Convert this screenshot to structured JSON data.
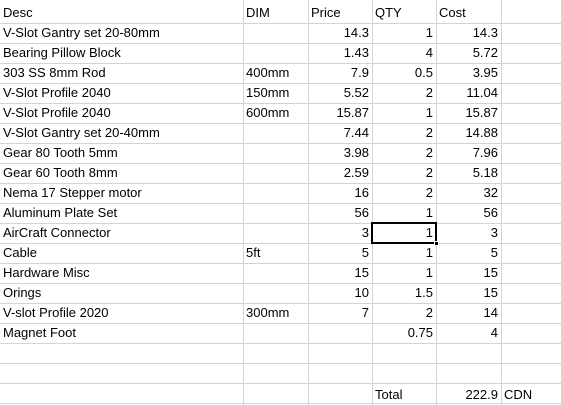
{
  "headers": [
    "Desc",
    "DIM",
    "Price",
    "QTY",
    "Cost"
  ],
  "rows": [
    {
      "desc": "V-Slot Gantry set 20-80mm",
      "dim": "",
      "price": "14.3",
      "qty": "1",
      "cost": "14.3"
    },
    {
      "desc": "Bearing Pillow Block",
      "dim": "",
      "price": "1.43",
      "qty": "4",
      "cost": "5.72"
    },
    {
      "desc": "303 SS 8mm Rod",
      "dim": "400mm",
      "price": "7.9",
      "qty": "0.5",
      "cost": "3.95"
    },
    {
      "desc": "V-Slot Profile 2040",
      "dim": "150mm",
      "price": "5.52",
      "qty": "2",
      "cost": "11.04"
    },
    {
      "desc": "V-Slot Profile 2040",
      "dim": "600mm",
      "price": "15.87",
      "qty": "1",
      "cost": "15.87"
    },
    {
      "desc": "V-Slot Gantry set 20-40mm",
      "dim": "",
      "price": "7.44",
      "qty": "2",
      "cost": "14.88"
    },
    {
      "desc": "Gear 80 Tooth 5mm",
      "dim": "",
      "price": "3.98",
      "qty": "2",
      "cost": "7.96"
    },
    {
      "desc": "Gear 60 Tooth 8mm",
      "dim": "",
      "price": "2.59",
      "qty": "2",
      "cost": "5.18"
    },
    {
      "desc": "Nema 17 Stepper motor",
      "dim": "",
      "price": "16",
      "qty": "2",
      "cost": "32"
    },
    {
      "desc": "Aluminum Plate Set",
      "dim": "",
      "price": "56",
      "qty": "1",
      "cost": "56"
    },
    {
      "desc": "AirCraft Connector",
      "dim": "",
      "price": "3",
      "qty": "1",
      "cost": "3"
    },
    {
      "desc": "Cable",
      "dim": "5ft",
      "price": "5",
      "qty": "1",
      "cost": "5"
    },
    {
      "desc": "Hardware Misc",
      "dim": "",
      "price": "15",
      "qty": "1",
      "cost": "15"
    },
    {
      "desc": "Orings",
      "dim": "",
      "price": "10",
      "qty": "1.5",
      "cost": "15"
    },
    {
      "desc": "V-slot Profile 2020",
      "dim": "300mm",
      "price": "7",
      "qty": "2",
      "cost": "14"
    },
    {
      "desc": "Magnet Foot",
      "dim": "",
      "price": "",
      "qty": "0.75",
      "cost": "4"
    }
  ],
  "total": {
    "label": "Total",
    "value": "222.9",
    "currency": "CDN"
  },
  "selected_cell": {
    "row": 10,
    "column": "qty"
  }
}
